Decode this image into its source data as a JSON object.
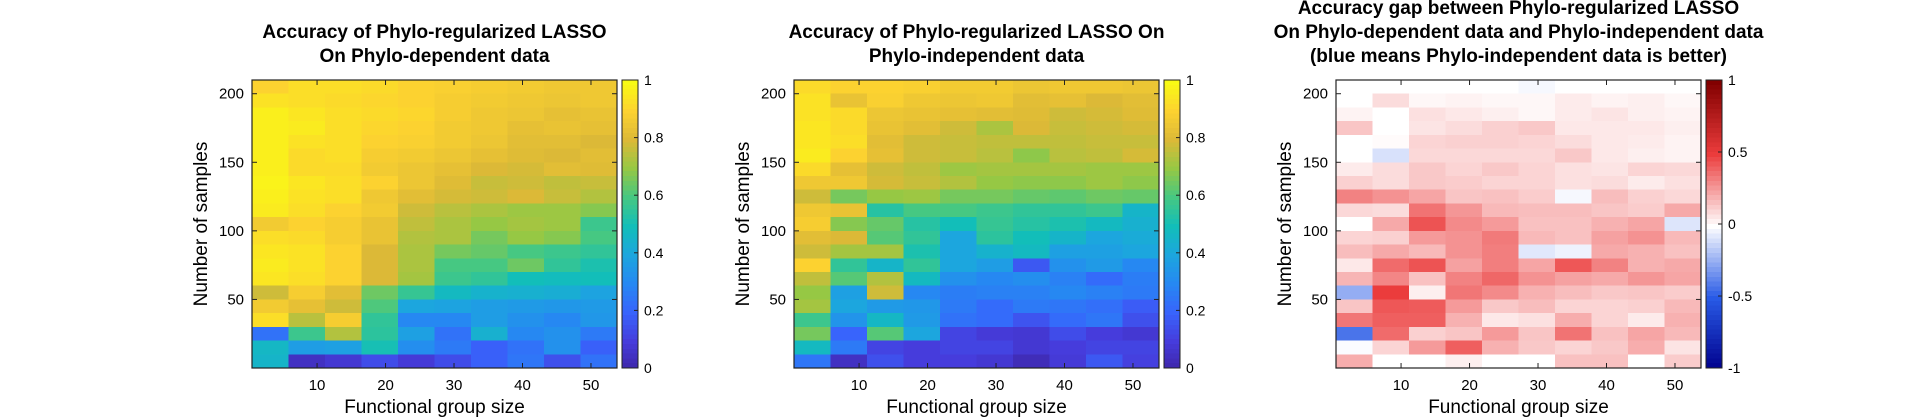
{
  "chart_data": [
    {
      "type": "heatmap",
      "title_lines": [
        "Accuracy of Phylo-regularized LASSO",
        "On Phylo-dependent data"
      ],
      "xlabel": "Functional group size",
      "ylabel": "Number of samples",
      "x_ticks": [
        "10",
        "20",
        "30",
        "40",
        "50"
      ],
      "y_ticks": [
        "50",
        "100",
        "150",
        "200"
      ],
      "colormap": "parula",
      "clim": [
        0,
        1
      ],
      "colorbar_ticks": [
        "0",
        "0.2",
        "0.4",
        "0.6",
        "0.8",
        "1"
      ],
      "values": [
        [
          0.9,
          0.93,
          0.93,
          0.92,
          0.9,
          0.89,
          0.88,
          0.87,
          0.86,
          0.86
        ],
        [
          0.94,
          0.93,
          0.92,
          0.91,
          0.9,
          0.88,
          0.87,
          0.86,
          0.85,
          0.86
        ],
        [
          0.97,
          0.95,
          0.93,
          0.92,
          0.91,
          0.88,
          0.86,
          0.85,
          0.83,
          0.84
        ],
        [
          0.97,
          0.96,
          0.93,
          0.91,
          0.9,
          0.87,
          0.86,
          0.83,
          0.84,
          0.83
        ],
        [
          0.97,
          0.94,
          0.93,
          0.9,
          0.89,
          0.87,
          0.85,
          0.82,
          0.82,
          0.8
        ],
        [
          0.97,
          0.92,
          0.93,
          0.88,
          0.87,
          0.85,
          0.83,
          0.81,
          0.8,
          0.82
        ],
        [
          0.97,
          0.92,
          0.92,
          0.87,
          0.85,
          0.83,
          0.8,
          0.79,
          0.82,
          0.81
        ],
        [
          0.98,
          0.95,
          0.93,
          0.9,
          0.85,
          0.81,
          0.77,
          0.78,
          0.76,
          0.77
        ],
        [
          0.97,
          0.94,
          0.93,
          0.86,
          0.82,
          0.79,
          0.78,
          0.8,
          0.77,
          0.74
        ],
        [
          0.96,
          0.93,
          0.9,
          0.87,
          0.78,
          0.75,
          0.73,
          0.71,
          0.71,
          0.68
        ],
        [
          0.87,
          0.9,
          0.88,
          0.84,
          0.76,
          0.73,
          0.7,
          0.72,
          0.71,
          0.58
        ],
        [
          0.93,
          0.92,
          0.88,
          0.84,
          0.74,
          0.73,
          0.66,
          0.7,
          0.68,
          0.6
        ],
        [
          0.95,
          0.94,
          0.9,
          0.8,
          0.73,
          0.66,
          0.64,
          0.6,
          0.58,
          0.56
        ],
        [
          0.96,
          0.94,
          0.9,
          0.8,
          0.73,
          0.6,
          0.6,
          0.65,
          0.56,
          0.52
        ],
        [
          0.95,
          0.93,
          0.9,
          0.8,
          0.72,
          0.58,
          0.56,
          0.5,
          0.49,
          0.5
        ],
        [
          0.78,
          0.88,
          0.82,
          0.65,
          0.57,
          0.48,
          0.45,
          0.44,
          0.43,
          0.39
        ],
        [
          0.87,
          0.83,
          0.78,
          0.61,
          0.4,
          0.39,
          0.37,
          0.36,
          0.35,
          0.36
        ],
        [
          0.93,
          0.75,
          0.88,
          0.56,
          0.3,
          0.3,
          0.37,
          0.33,
          0.3,
          0.35
        ],
        [
          0.24,
          0.58,
          0.74,
          0.55,
          0.38,
          0.24,
          0.44,
          0.3,
          0.33,
          0.26
        ],
        [
          0.47,
          0.37,
          0.38,
          0.51,
          0.32,
          0.26,
          0.19,
          0.24,
          0.33,
          0.19
        ],
        [
          0.46,
          0.05,
          0.08,
          0.14,
          0.09,
          0.14,
          0.19,
          0.25,
          0.15,
          0.24
        ]
      ]
    },
    {
      "type": "heatmap",
      "title_lines": [
        "Accuracy of Phylo-regularized LASSO On",
        "Phylo-independent data"
      ],
      "xlabel": "Functional group size",
      "ylabel": "Number of samples",
      "x_ticks": [
        "10",
        "20",
        "30",
        "40",
        "50"
      ],
      "y_ticks": [
        "50",
        "100",
        "150",
        "200"
      ],
      "colormap": "parula",
      "clim": [
        0,
        1
      ],
      "colorbar_ticks": [
        "0",
        "0.2",
        "0.4",
        "0.6",
        "0.8",
        "1"
      ],
      "values": [
        [
          0.92,
          0.9,
          0.9,
          0.89,
          0.87,
          0.87,
          0.85,
          0.86,
          0.86,
          0.85
        ],
        [
          0.94,
          0.84,
          0.89,
          0.86,
          0.85,
          0.86,
          0.82,
          0.83,
          0.8,
          0.82
        ],
        [
          0.94,
          0.92,
          0.85,
          0.84,
          0.83,
          0.82,
          0.81,
          0.78,
          0.79,
          0.81
        ],
        [
          0.95,
          0.92,
          0.84,
          0.82,
          0.78,
          0.73,
          0.8,
          0.77,
          0.78,
          0.79
        ],
        [
          0.95,
          0.93,
          0.82,
          0.78,
          0.77,
          0.76,
          0.76,
          0.76,
          0.77,
          0.77
        ],
        [
          0.96,
          0.9,
          0.83,
          0.78,
          0.77,
          0.75,
          0.69,
          0.75,
          0.76,
          0.79
        ],
        [
          0.92,
          0.83,
          0.78,
          0.76,
          0.71,
          0.72,
          0.72,
          0.72,
          0.71,
          0.71
        ],
        [
          0.86,
          0.86,
          0.79,
          0.77,
          0.74,
          0.7,
          0.69,
          0.69,
          0.71,
          0.69
        ],
        [
          0.78,
          0.66,
          0.7,
          0.71,
          0.66,
          0.66,
          0.64,
          0.63,
          0.65,
          0.64
        ],
        [
          0.86,
          0.84,
          0.54,
          0.6,
          0.6,
          0.58,
          0.56,
          0.56,
          0.58,
          0.46
        ],
        [
          0.88,
          0.68,
          0.64,
          0.54,
          0.5,
          0.57,
          0.54,
          0.52,
          0.48,
          0.44
        ],
        [
          0.82,
          0.8,
          0.62,
          0.56,
          0.4,
          0.55,
          0.5,
          0.46,
          0.4,
          0.42
        ],
        [
          0.78,
          0.72,
          0.72,
          0.52,
          0.4,
          0.45,
          0.48,
          0.38,
          0.38,
          0.4
        ],
        [
          0.9,
          0.56,
          0.46,
          0.56,
          0.4,
          0.37,
          0.17,
          0.33,
          0.36,
          0.3
        ],
        [
          0.76,
          0.62,
          0.74,
          0.48,
          0.33,
          0.3,
          0.32,
          0.28,
          0.22,
          0.27
        ],
        [
          0.7,
          0.38,
          0.78,
          0.3,
          0.27,
          0.28,
          0.28,
          0.3,
          0.28,
          0.26
        ],
        [
          0.72,
          0.4,
          0.36,
          0.35,
          0.26,
          0.22,
          0.26,
          0.25,
          0.23,
          0.18
        ],
        [
          0.58,
          0.34,
          0.47,
          0.36,
          0.24,
          0.22,
          0.16,
          0.22,
          0.25,
          0.15
        ],
        [
          0.66,
          0.2,
          0.62,
          0.4,
          0.12,
          0.09,
          0.08,
          0.14,
          0.1,
          0.08
        ],
        [
          0.48,
          0.26,
          0.12,
          0.1,
          0.12,
          0.12,
          0.08,
          0.1,
          0.12,
          0.12
        ],
        [
          0.25,
          0.05,
          0.15,
          0.1,
          0.1,
          0.08,
          0.03,
          0.09,
          0.17,
          0.11
        ]
      ]
    },
    {
      "type": "heatmap",
      "title_lines": [
        "Accuracy gap between Phylo-regularized LASSO",
        "On Phylo-dependent data and Phylo-independent data",
        "(blue means Phylo-independent data is better)"
      ],
      "xlabel": "Functional group size",
      "ylabel": "Number of samples",
      "x_ticks": [
        "10",
        "20",
        "30",
        "40",
        "50"
      ],
      "y_ticks": [
        "50",
        "100",
        "150",
        "200"
      ],
      "colormap": "blue-white-red",
      "clim": [
        -1,
        1
      ],
      "colorbar_ticks": [
        "-1",
        "-0.5",
        "0",
        "0.5",
        "1"
      ],
      "values": [
        [
          0.0,
          0.0,
          0.0,
          0.0,
          0.0,
          -0.02,
          0.0,
          0.0,
          0.0,
          0.0
        ],
        [
          0.0,
          0.09,
          0.02,
          0.03,
          0.02,
          0.02,
          0.05,
          0.03,
          0.04,
          0.02
        ],
        [
          0.03,
          0.0,
          0.08,
          0.06,
          0.04,
          0.02,
          0.05,
          0.07,
          0.04,
          0.03
        ],
        [
          0.15,
          0.0,
          0.07,
          0.09,
          0.12,
          0.14,
          0.06,
          0.06,
          0.06,
          0.04
        ],
        [
          0.0,
          0.01,
          0.11,
          0.12,
          0.12,
          0.11,
          0.09,
          0.06,
          0.05,
          0.03
        ],
        [
          0.0,
          -0.09,
          0.1,
          0.1,
          0.1,
          0.1,
          0.14,
          0.06,
          0.04,
          0.03
        ],
        [
          0.05,
          0.09,
          0.14,
          0.11,
          0.14,
          0.11,
          0.08,
          0.07,
          0.11,
          0.1
        ],
        [
          0.12,
          0.09,
          0.14,
          0.13,
          0.11,
          0.11,
          0.08,
          0.09,
          0.05,
          0.08
        ],
        [
          0.32,
          0.28,
          0.23,
          0.15,
          0.16,
          0.13,
          -0.02,
          0.17,
          0.12,
          0.1
        ],
        [
          0.1,
          0.09,
          0.36,
          0.27,
          0.18,
          0.17,
          0.17,
          0.15,
          0.13,
          0.22
        ],
        [
          0.0,
          0.22,
          0.44,
          0.3,
          0.26,
          0.16,
          0.16,
          0.2,
          0.23,
          -0.08
        ],
        [
          0.11,
          0.12,
          0.26,
          0.28,
          0.34,
          0.18,
          0.16,
          0.24,
          0.28,
          0.18
        ],
        [
          0.17,
          0.22,
          0.18,
          0.28,
          0.33,
          -0.07,
          -0.04,
          0.22,
          0.2,
          0.16
        ],
        [
          0.06,
          0.38,
          0.44,
          0.24,
          0.33,
          0.23,
          0.43,
          0.32,
          0.2,
          0.22
        ],
        [
          0.19,
          0.31,
          0.16,
          0.32,
          0.39,
          0.28,
          0.24,
          0.22,
          0.27,
          0.23
        ],
        [
          -0.25,
          0.5,
          0.04,
          0.35,
          0.3,
          0.2,
          0.17,
          0.14,
          0.15,
          0.13
        ],
        [
          0.15,
          0.43,
          0.42,
          0.26,
          0.14,
          0.17,
          0.11,
          0.11,
          0.12,
          0.18
        ],
        [
          0.35,
          0.41,
          0.41,
          0.2,
          0.06,
          0.08,
          0.21,
          0.11,
          0.05,
          0.2
        ],
        [
          -0.42,
          0.38,
          0.12,
          0.15,
          0.26,
          0.15,
          0.36,
          0.16,
          0.23,
          0.18
        ],
        [
          -0.01,
          0.11,
          0.26,
          0.41,
          0.2,
          0.14,
          0.11,
          0.14,
          0.21,
          0.07
        ],
        [
          0.21,
          0.0,
          0.0,
          0.04,
          0.0,
          0.0,
          0.16,
          0.16,
          0.0,
          0.13
        ]
      ]
    }
  ]
}
